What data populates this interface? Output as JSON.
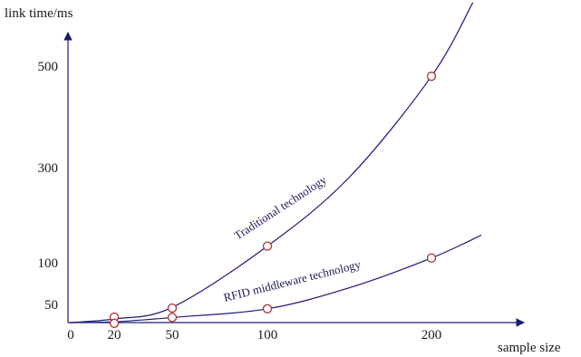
{
  "chart_data": {
    "type": "line",
    "title": "",
    "xlabel": "sample size",
    "ylabel": "link time/ms",
    "x_ticks": [
      {
        "value": 0,
        "label": "0"
      },
      {
        "value": 20,
        "label": "20"
      },
      {
        "value": 50,
        "label": "50"
      },
      {
        "value": 100,
        "label": "100"
      },
      {
        "value": 200,
        "label": "200"
      }
    ],
    "y_ticks": [
      {
        "value": 50,
        "label": "50"
      },
      {
        "value": 100,
        "label": "100"
      },
      {
        "value": 300,
        "label": "300"
      },
      {
        "value": 500,
        "label": "500"
      }
    ],
    "xlim": [
      0,
      235
    ],
    "ylim": [
      0,
      630
    ],
    "grid": false,
    "legend": "none",
    "series": [
      {
        "name": "Traditional technology",
        "color": "#1a1a7a",
        "marker_color": "#b03030",
        "points": [
          [
            20,
            15
          ],
          [
            50,
            40
          ],
          [
            100,
            135
          ],
          [
            200,
            480
          ]
        ],
        "curve": [
          [
            0,
            0
          ],
          [
            20,
            10
          ],
          [
            50,
            42
          ],
          [
            100,
            135
          ],
          [
            150,
            280
          ],
          [
            200,
            480
          ],
          [
            225,
            625
          ]
        ]
      },
      {
        "name": "RFID middleware technology",
        "color": "#1a1a7a",
        "marker_color": "#b03030",
        "points": [
          [
            20,
            -2
          ],
          [
            50,
            14
          ],
          [
            100,
            38
          ],
          [
            200,
            110
          ]
        ],
        "curve": [
          [
            0,
            0
          ],
          [
            20,
            2
          ],
          [
            50,
            14
          ],
          [
            100,
            38
          ],
          [
            150,
            70
          ],
          [
            200,
            110
          ],
          [
            230,
            158
          ]
        ]
      }
    ],
    "annotations": [
      "Traditional technology",
      "RFID middleware technology"
    ]
  }
}
